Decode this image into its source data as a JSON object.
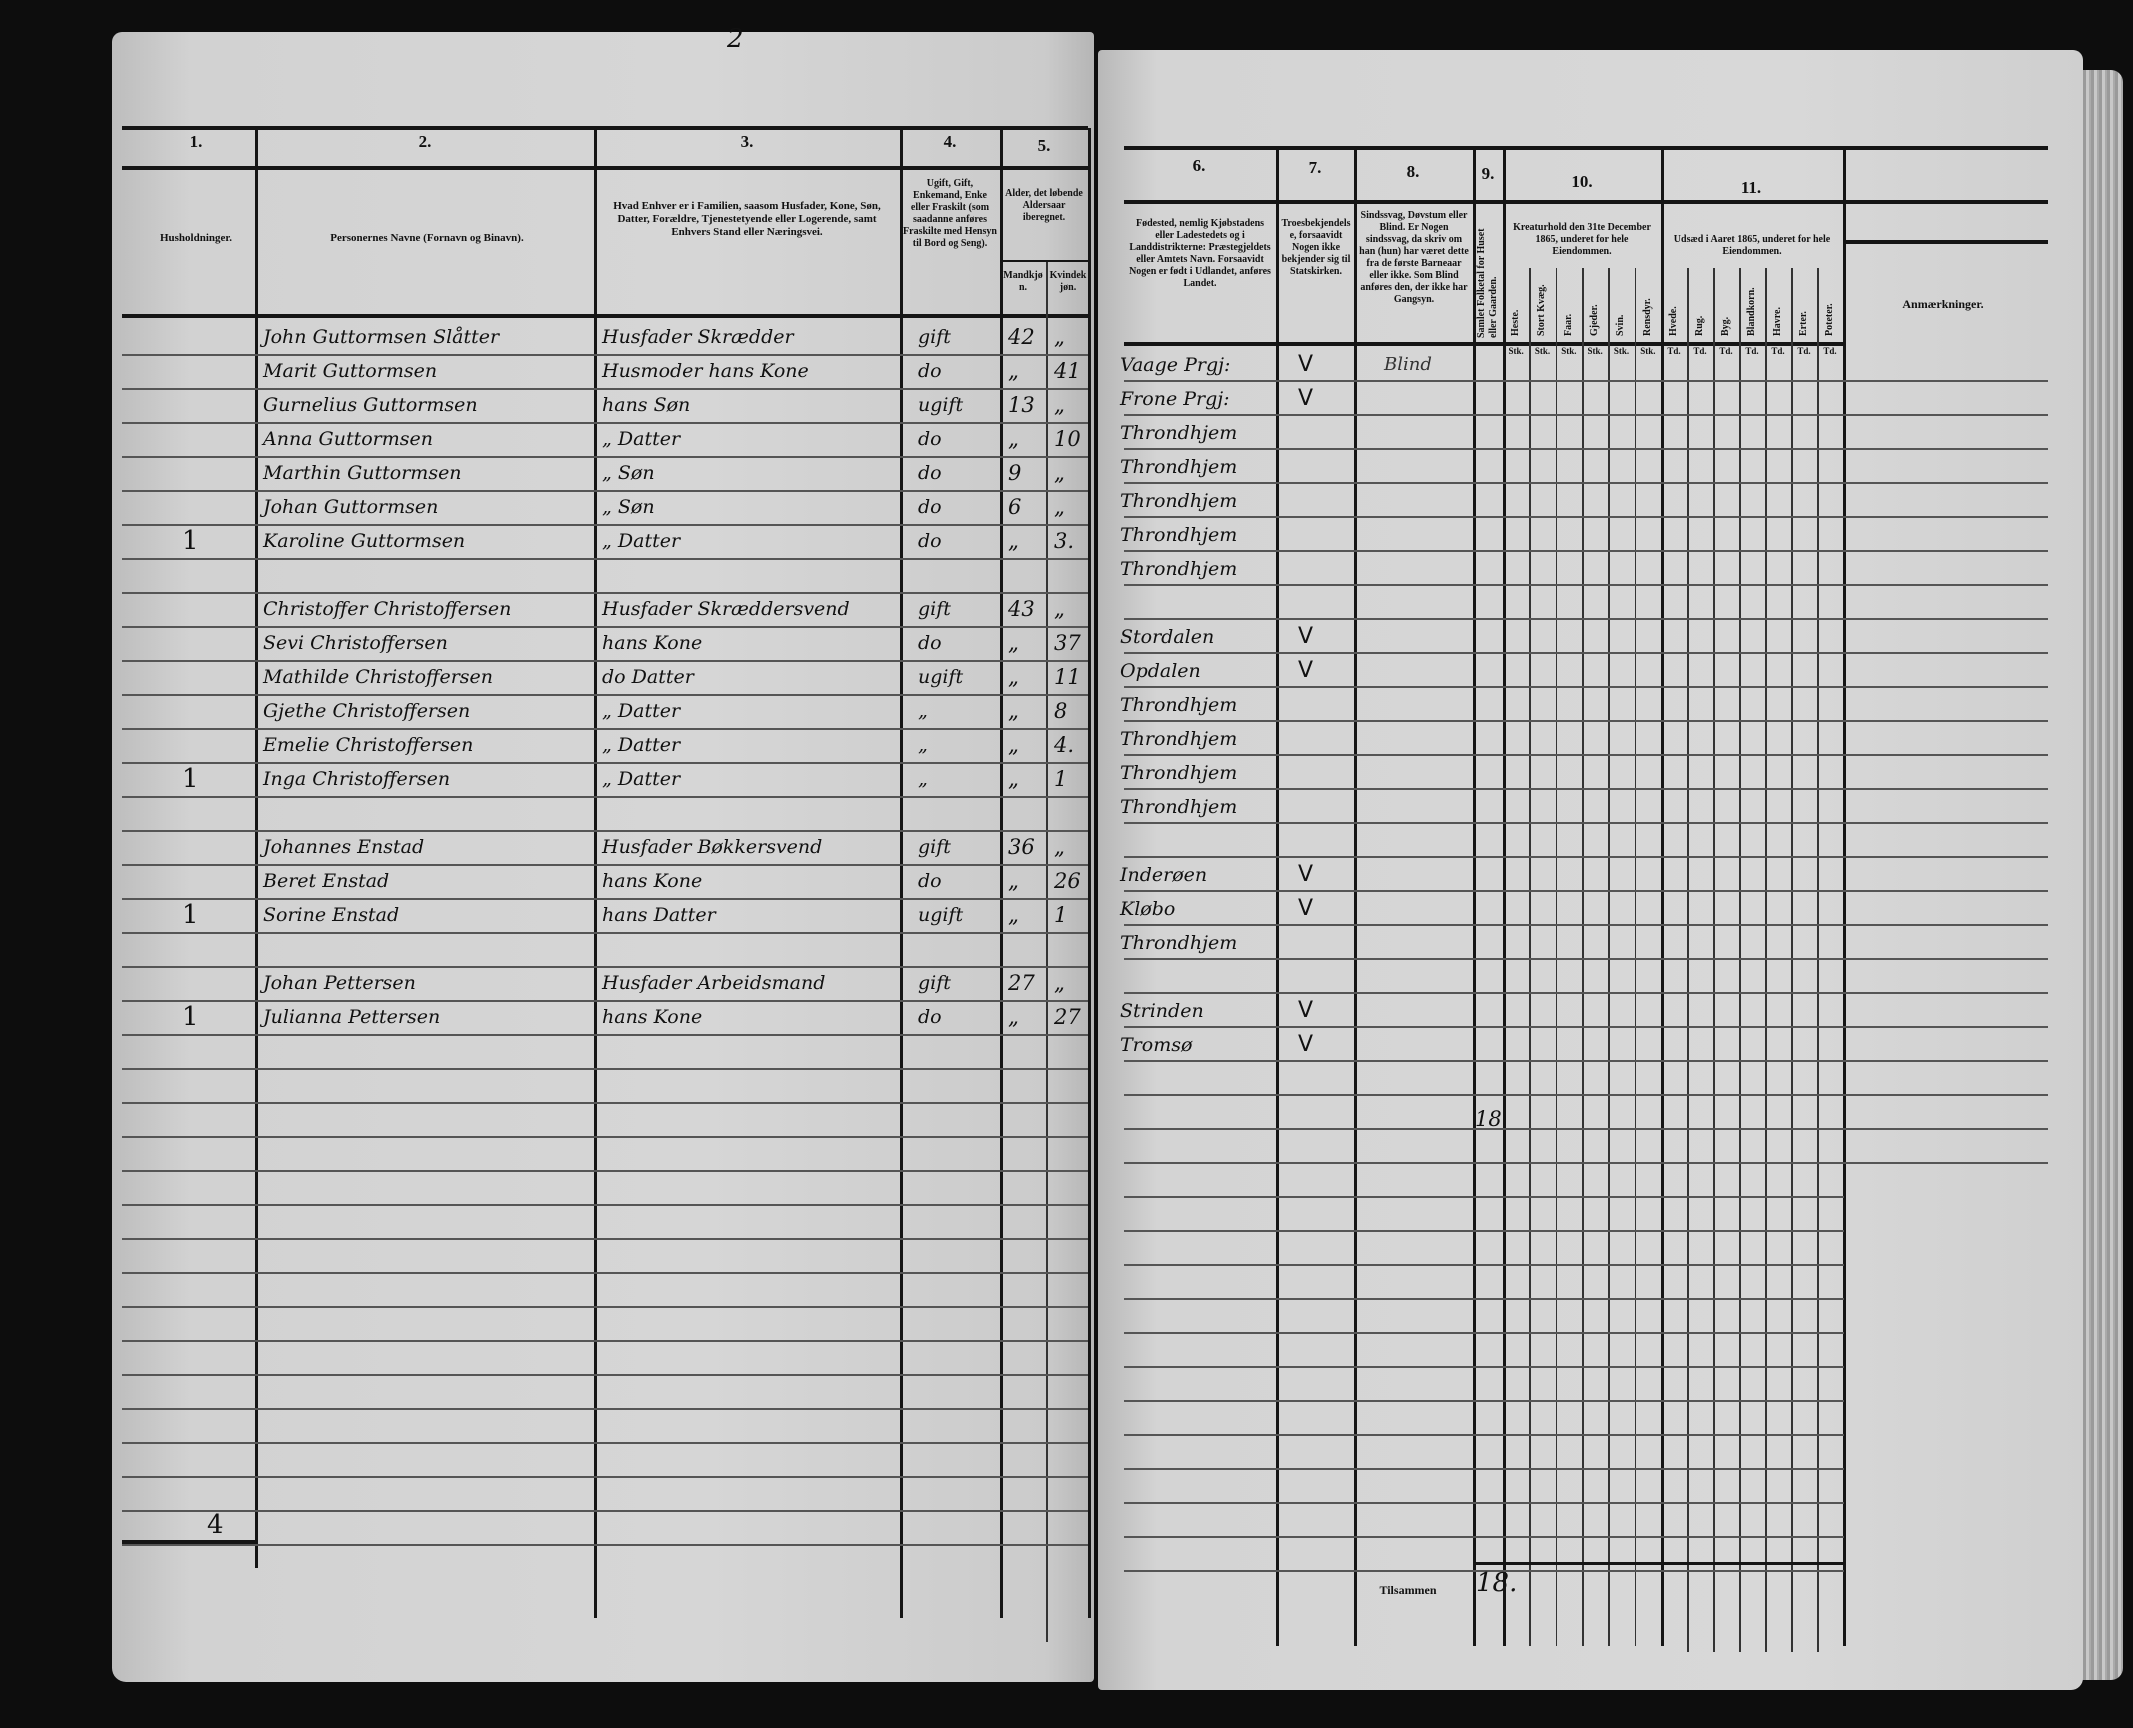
{
  "top_mark": "2",
  "left": {
    "col_numbers": [
      "1.",
      "2.",
      "3.",
      "4.",
      "5."
    ],
    "headers": {
      "households": "Husholdninger.",
      "names": "Personernes Navne (Fornavn og Binavn).",
      "role": "Hvad Enhver er i Familien, saasom Husfader, Kone, Søn, Datter, Forældre, Tjenestetyende eller Logerende, samt Enhvers Stand eller Næringsvei.",
      "marital": "Ugift, Gift, Enkemand, Enke eller Fraskilt (som saadanne anføres Fraskilte med Hensyn til Bord og Seng).",
      "age": "Alder, det løbende Aldersaar iberegnet.",
      "male": "Mandkjøn.",
      "female": "Kvindekjøn."
    },
    "rows": [
      {
        "hh": "",
        "name": "John Guttormsen Slåtter",
        "role": "Husfader  Skrædder",
        "marital": "gift",
        "m": "42",
        "f": "„"
      },
      {
        "hh": "",
        "name": "Marit Guttormsen",
        "role": "Husmoder hans Kone",
        "marital": "do",
        "m": "„",
        "f": "41"
      },
      {
        "hh": "",
        "name": "Gurnelius Guttormsen",
        "role": "hans Søn",
        "marital": "ugift",
        "m": "13",
        "f": "„"
      },
      {
        "hh": "",
        "name": "Anna Guttormsen",
        "role": "„   Datter",
        "marital": "do",
        "m": "„",
        "f": "10"
      },
      {
        "hh": "",
        "name": "Marthin Guttormsen",
        "role": "„   Søn",
        "marital": "do",
        "m": "9",
        "f": "„"
      },
      {
        "hh": "",
        "name": "Johan Guttormsen",
        "role": "„   Søn",
        "marital": "do",
        "m": "6",
        "f": "„"
      },
      {
        "hh": "1",
        "name": "Karoline Guttormsen",
        "role": "„   Datter",
        "marital": "do",
        "m": "„",
        "f": "3."
      },
      {
        "hh": "",
        "name": "",
        "role": "",
        "marital": "",
        "m": "",
        "f": ""
      },
      {
        "hh": "",
        "name": "Christoffer Christoffersen",
        "role": "Husfader Skræddersvend",
        "marital": "gift",
        "m": "43",
        "f": "„"
      },
      {
        "hh": "",
        "name": "Sevi Christoffersen",
        "role": "hans Kone",
        "marital": "do",
        "m": "„",
        "f": "37"
      },
      {
        "hh": "",
        "name": "Mathilde Christoffersen",
        "role": "do  Datter",
        "marital": "ugift",
        "m": "„",
        "f": "11"
      },
      {
        "hh": "",
        "name": "Gjethe Christoffersen",
        "role": "„   Datter",
        "marital": "„",
        "m": "„",
        "f": "8"
      },
      {
        "hh": "",
        "name": "Emelie Christoffersen",
        "role": "„   Datter",
        "marital": "„",
        "m": "„",
        "f": "4."
      },
      {
        "hh": "1",
        "name": "Inga Christoffersen",
        "role": "„   Datter",
        "marital": "„",
        "m": "„",
        "f": "1"
      },
      {
        "hh": "",
        "name": "",
        "role": "",
        "marital": "",
        "m": "",
        "f": ""
      },
      {
        "hh": "",
        "name": "Johannes Enstad",
        "role": "Husfader Bøkkersvend",
        "marital": "gift",
        "m": "36",
        "f": "„"
      },
      {
        "hh": "",
        "name": "Beret  Enstad",
        "role": "hans  Kone",
        "marital": "do",
        "m": "„",
        "f": "26"
      },
      {
        "hh": "1",
        "name": "Sorine  Enstad",
        "role": "hans  Datter",
        "marital": "ugift",
        "m": "„",
        "f": "1"
      },
      {
        "hh": "",
        "name": "",
        "role": "",
        "marital": "",
        "m": "",
        "f": ""
      },
      {
        "hh": "",
        "name": "Johan Pettersen",
        "role": "Husfader Arbeidsmand",
        "marital": "gift",
        "m": "27",
        "f": "„"
      },
      {
        "hh": "1",
        "name": "Julianna Pettersen",
        "role": "hans  Kone",
        "marital": "do",
        "m": "„",
        "f": "27"
      }
    ],
    "household_total": "4"
  },
  "right": {
    "col_numbers": [
      "6.",
      "7.",
      "8.",
      "9.",
      "10.",
      "11."
    ],
    "headers": {
      "birthplace": "Fødested, nemlig Kjøbstadens eller Ladestedets og i Landdistrikterne: Præstegjeldets eller Amtets Navn. Forsaavidt Nogen er født i Udlandet, anføres Landet.",
      "religion": "Troesbekjendelse, forsaavidt Nogen ikke bekjender sig til Statskirken.",
      "disability": "Sindssvag, Døvstum eller Blind. Er Nogen sindssvag, da skriv om han (hun) har været dette fra de første Barneaar eller ikke. Som Blind anføres den, der ikke har Gangsyn.",
      "census_count": "Samlet Folketal for Huset eller Gaarden.",
      "livestock": "Kreaturhold den 31te December 1865, underet for hele Eiendommen.",
      "livestock_cols": [
        "Heste.",
        "Stort Kvæg.",
        "Faar.",
        "Gjeder.",
        "Svin.",
        "Rensdyr."
      ],
      "livestock_unit": "Stk.",
      "sowing": "Udsæd i Aaret 1865, underet for hele Eiendommen.",
      "sowing_cols": [
        "Hvede.",
        "Rug.",
        "Byg.",
        "Blandkorn.",
        "Havre.",
        "Erter.",
        "Poteter."
      ],
      "sowing_unit": "Td.",
      "remarks": "Anmærkninger."
    },
    "rows": [
      {
        "birthplace": "Vaage Prgj:",
        "religion": "V",
        "disability": "Blind"
      },
      {
        "birthplace": "Frone Prgj:",
        "religion": "V",
        "disability": ""
      },
      {
        "birthplace": "Throndhjem",
        "religion": "",
        "disability": ""
      },
      {
        "birthplace": "Throndhjem",
        "religion": "",
        "disability": ""
      },
      {
        "birthplace": "Throndhjem",
        "religion": "",
        "disability": ""
      },
      {
        "birthplace": "Throndhjem",
        "religion": "",
        "disability": ""
      },
      {
        "birthplace": "Throndhjem",
        "religion": "",
        "disability": ""
      },
      {
        "birthplace": "",
        "religion": "",
        "disability": ""
      },
      {
        "birthplace": "Stordalen",
        "religion": "V",
        "disability": ""
      },
      {
        "birthplace": "Opdalen",
        "religion": "V",
        "disability": ""
      },
      {
        "birthplace": "Throndhjem",
        "religion": "",
        "disability": ""
      },
      {
        "birthplace": "Throndhjem",
        "religion": "",
        "disability": ""
      },
      {
        "birthplace": "Throndhjem",
        "religion": "",
        "disability": ""
      },
      {
        "birthplace": "Throndhjem",
        "religion": "",
        "disability": ""
      },
      {
        "birthplace": "",
        "religion": "",
        "disability": ""
      },
      {
        "birthplace": "Inderøen",
        "religion": "V",
        "disability": ""
      },
      {
        "birthplace": "Kløbo",
        "religion": "V",
        "disability": ""
      },
      {
        "birthplace": "Throndhjem",
        "religion": "",
        "disability": ""
      },
      {
        "birthplace": "",
        "religion": "",
        "disability": ""
      },
      {
        "birthplace": "Strinden",
        "religion": "V",
        "disability": ""
      },
      {
        "birthplace": "Tromsø",
        "religion": "V",
        "disability": ""
      }
    ],
    "house_count": "18",
    "total_label": "Tilsammen",
    "total_value": "18."
  }
}
